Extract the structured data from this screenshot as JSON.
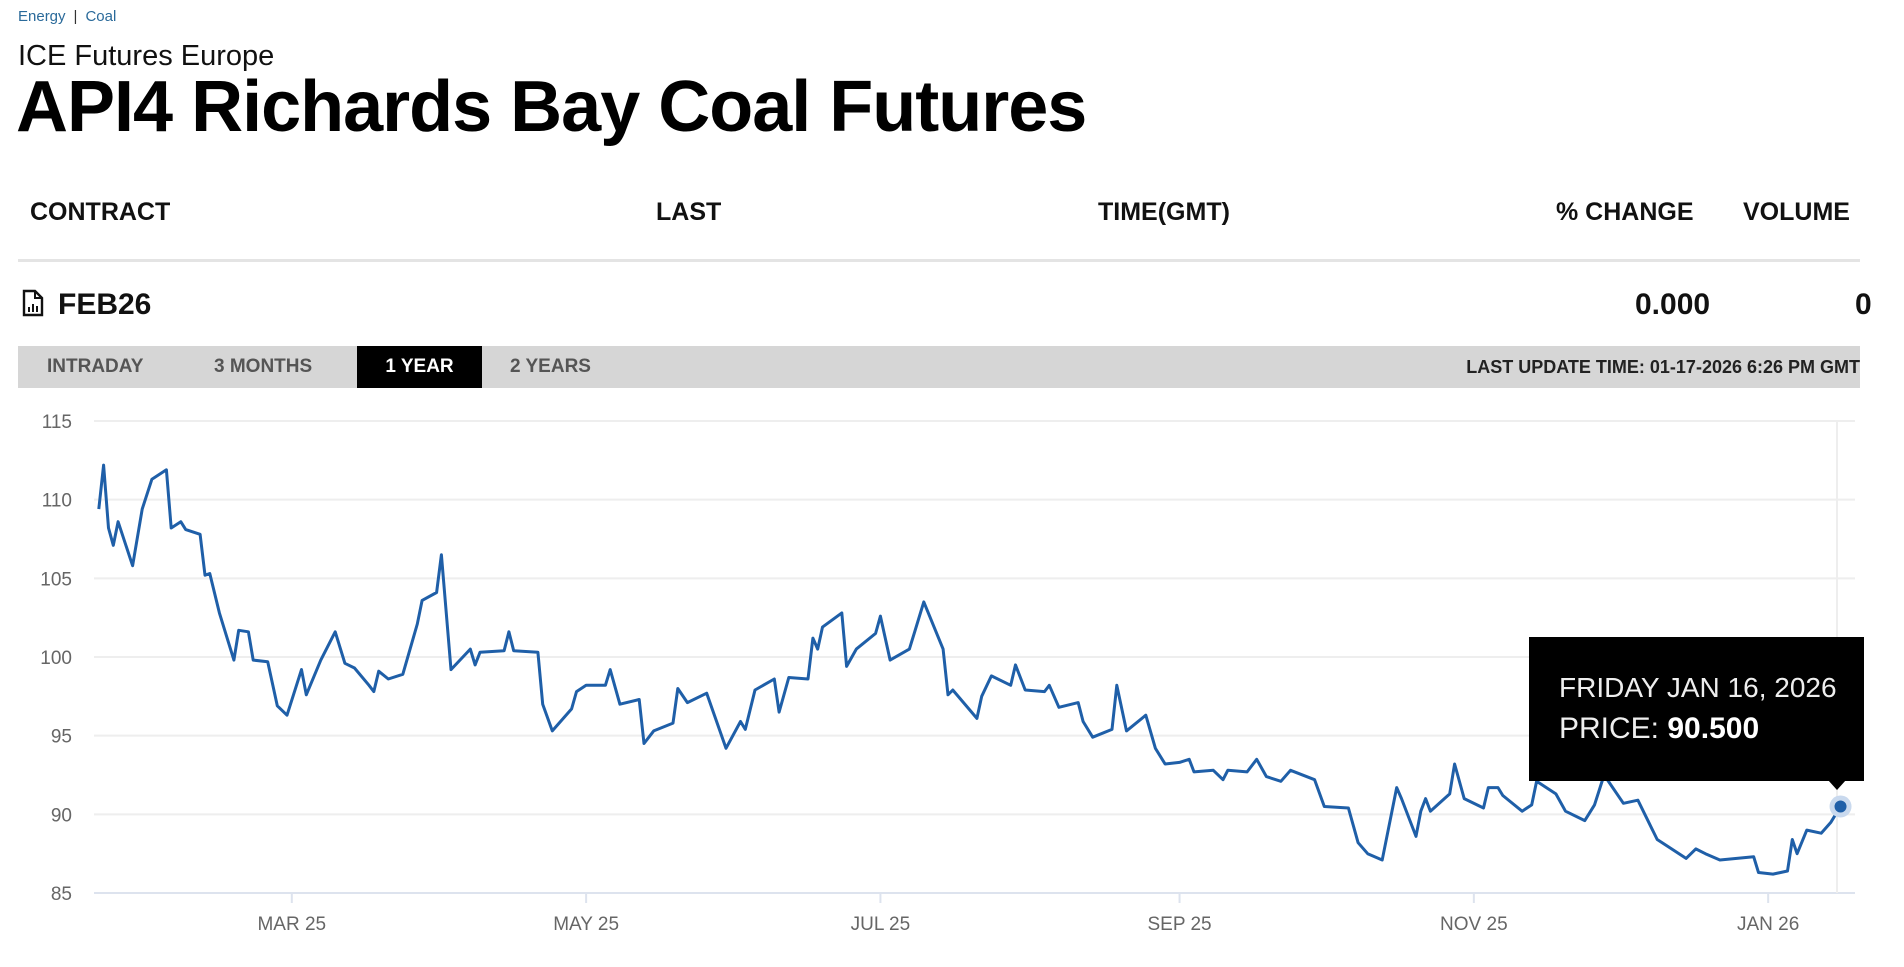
{
  "breadcrumb": [
    "Energy",
    "Coal"
  ],
  "exchange": "ICE Futures Europe",
  "title": "API4 Richards Bay Coal Futures",
  "table": {
    "headers": [
      "CONTRACT",
      "LAST",
      "TIME(GMT)",
      "% CHANGE",
      "VOLUME"
    ],
    "row": {
      "contract": "FEB26",
      "contract_icon": "chart-document-icon",
      "last": "",
      "time": "",
      "change": "0.000",
      "volume": "0"
    }
  },
  "tabs": [
    {
      "label": "INTRADAY",
      "active": false
    },
    {
      "label": "3 MONTHS",
      "active": false
    },
    {
      "label": "1 YEAR",
      "active": true
    },
    {
      "label": "2 YEARS",
      "active": false
    }
  ],
  "last_update": "LAST UPDATE TIME: 01-17-2026 6:26 PM GMT",
  "tooltip": {
    "date": "FRIDAY JAN 16, 2026",
    "price_label": "PRICE:",
    "price": "90.500"
  },
  "colors": {
    "line": "#1f5fa8",
    "tab_bar": "#d6d6d6",
    "active_tab": "#000000",
    "breadcrumb": "#2a6a9a"
  },
  "chart_data": {
    "type": "line",
    "title": "",
    "xlabel": "",
    "ylabel": "",
    "ylim": [
      85,
      115
    ],
    "xlim": [
      "2025-01-19",
      "2026-01-19"
    ],
    "yticks": [
      85,
      90,
      95,
      100,
      105,
      110,
      115
    ],
    "xticks": [
      {
        "date": "2025-03-01",
        "label": "MAR 25"
      },
      {
        "date": "2025-05-01",
        "label": "MAY 25"
      },
      {
        "date": "2025-07-01",
        "label": "JUL 25"
      },
      {
        "date": "2025-09-01",
        "label": "SEP 25"
      },
      {
        "date": "2025-11-01",
        "label": "NOV 25"
      },
      {
        "date": "2026-01-01",
        "label": "JAN 26"
      }
    ],
    "grid": true,
    "highlight": {
      "date": "2026-01-16",
      "value": 90.5
    },
    "series": [
      {
        "points": [
          [
            "2025-01-20",
            109.4
          ],
          [
            "2025-01-21",
            112.2
          ],
          [
            "2025-01-22",
            108.2
          ],
          [
            "2025-01-23",
            107.1
          ],
          [
            "2025-01-24",
            108.6
          ],
          [
            "2025-01-27",
            105.8
          ],
          [
            "2025-01-29",
            109.4
          ],
          [
            "2025-01-31",
            111.3
          ],
          [
            "2025-02-03",
            111.9
          ],
          [
            "2025-02-04",
            108.2
          ],
          [
            "2025-02-06",
            108.6
          ],
          [
            "2025-02-07",
            108.1
          ],
          [
            "2025-02-10",
            107.8
          ],
          [
            "2025-02-11",
            105.2
          ],
          [
            "2025-02-12",
            105.3
          ],
          [
            "2025-02-14",
            102.8
          ],
          [
            "2025-02-17",
            99.8
          ],
          [
            "2025-02-18",
            101.7
          ],
          [
            "2025-02-20",
            101.6
          ],
          [
            "2025-02-21",
            99.8
          ],
          [
            "2025-02-24",
            99.7
          ],
          [
            "2025-02-26",
            96.9
          ],
          [
            "2025-02-28",
            96.3
          ],
          [
            "2025-03-03",
            99.2
          ],
          [
            "2025-03-04",
            97.6
          ],
          [
            "2025-03-07",
            99.8
          ],
          [
            "2025-03-10",
            101.6
          ],
          [
            "2025-03-12",
            99.6
          ],
          [
            "2025-03-14",
            99.3
          ],
          [
            "2025-03-17",
            98.2
          ],
          [
            "2025-03-18",
            97.8
          ],
          [
            "2025-03-19",
            99.1
          ],
          [
            "2025-03-21",
            98.6
          ],
          [
            "2025-03-24",
            98.9
          ],
          [
            "2025-03-27",
            102.1
          ],
          [
            "2025-03-28",
            103.6
          ],
          [
            "2025-03-31",
            104.1
          ],
          [
            "2025-04-01",
            106.5
          ],
          [
            "2025-04-03",
            99.2
          ],
          [
            "2025-04-07",
            100.5
          ],
          [
            "2025-04-08",
            99.5
          ],
          [
            "2025-04-09",
            100.3
          ],
          [
            "2025-04-14",
            100.4
          ],
          [
            "2025-04-15",
            101.6
          ],
          [
            "2025-04-16",
            100.4
          ],
          [
            "2025-04-21",
            100.3
          ],
          [
            "2025-04-22",
            97.0
          ],
          [
            "2025-04-24",
            95.3
          ],
          [
            "2025-04-28",
            96.7
          ],
          [
            "2025-04-29",
            97.8
          ],
          [
            "2025-05-01",
            98.2
          ],
          [
            "2025-05-05",
            98.2
          ],
          [
            "2025-05-06",
            99.2
          ],
          [
            "2025-05-08",
            97.0
          ],
          [
            "2025-05-12",
            97.3
          ],
          [
            "2025-05-13",
            94.5
          ],
          [
            "2025-05-15",
            95.3
          ],
          [
            "2025-05-19",
            95.8
          ],
          [
            "2025-05-20",
            98.0
          ],
          [
            "2025-05-22",
            97.1
          ],
          [
            "2025-05-26",
            97.7
          ],
          [
            "2025-05-27",
            96.8
          ],
          [
            "2025-05-30",
            94.2
          ],
          [
            "2025-06-02",
            95.9
          ],
          [
            "2025-06-03",
            95.4
          ],
          [
            "2025-06-05",
            97.9
          ],
          [
            "2025-06-09",
            98.6
          ],
          [
            "2025-06-10",
            96.5
          ],
          [
            "2025-06-12",
            98.7
          ],
          [
            "2025-06-16",
            98.6
          ],
          [
            "2025-06-17",
            101.2
          ],
          [
            "2025-06-18",
            100.5
          ],
          [
            "2025-06-19",
            101.9
          ],
          [
            "2025-06-23",
            102.8
          ],
          [
            "2025-06-24",
            99.4
          ],
          [
            "2025-06-26",
            100.5
          ],
          [
            "2025-06-30",
            101.5
          ],
          [
            "2025-07-01",
            102.6
          ],
          [
            "2025-07-03",
            99.8
          ],
          [
            "2025-07-07",
            100.5
          ],
          [
            "2025-07-08",
            101.5
          ],
          [
            "2025-07-10",
            103.5
          ],
          [
            "2025-07-14",
            100.5
          ],
          [
            "2025-07-15",
            97.6
          ],
          [
            "2025-07-16",
            97.9
          ],
          [
            "2025-07-21",
            96.1
          ],
          [
            "2025-07-22",
            97.5
          ],
          [
            "2025-07-24",
            98.8
          ],
          [
            "2025-07-28",
            98.2
          ],
          [
            "2025-07-29",
            99.5
          ],
          [
            "2025-07-31",
            97.9
          ],
          [
            "2025-08-04",
            97.8
          ],
          [
            "2025-08-05",
            98.2
          ],
          [
            "2025-08-07",
            96.8
          ],
          [
            "2025-08-11",
            97.1
          ],
          [
            "2025-08-12",
            95.9
          ],
          [
            "2025-08-14",
            94.9
          ],
          [
            "2025-08-18",
            95.4
          ],
          [
            "2025-08-19",
            98.2
          ],
          [
            "2025-08-21",
            95.3
          ],
          [
            "2025-08-25",
            96.3
          ],
          [
            "2025-08-27",
            94.2
          ],
          [
            "2025-08-29",
            93.2
          ],
          [
            "2025-09-01",
            93.3
          ],
          [
            "2025-09-03",
            93.5
          ],
          [
            "2025-09-04",
            92.7
          ],
          [
            "2025-09-08",
            92.8
          ],
          [
            "2025-09-10",
            92.2
          ],
          [
            "2025-09-11",
            92.8
          ],
          [
            "2025-09-15",
            92.7
          ],
          [
            "2025-09-17",
            93.5
          ],
          [
            "2025-09-19",
            92.4
          ],
          [
            "2025-09-22",
            92.1
          ],
          [
            "2025-09-24",
            92.8
          ],
          [
            "2025-09-29",
            92.2
          ],
          [
            "2025-10-01",
            90.5
          ],
          [
            "2025-10-06",
            90.4
          ],
          [
            "2025-10-08",
            88.2
          ],
          [
            "2025-10-10",
            87.5
          ],
          [
            "2025-10-13",
            87.1
          ],
          [
            "2025-10-16",
            91.7
          ],
          [
            "2025-10-17",
            91.0
          ],
          [
            "2025-10-20",
            88.6
          ],
          [
            "2025-10-21",
            90.2
          ],
          [
            "2025-10-22",
            91.0
          ],
          [
            "2025-10-23",
            90.2
          ],
          [
            "2025-10-27",
            91.3
          ],
          [
            "2025-10-28",
            93.2
          ],
          [
            "2025-10-30",
            91.0
          ],
          [
            "2025-11-03",
            90.4
          ],
          [
            "2025-11-04",
            91.7
          ],
          [
            "2025-11-06",
            91.7
          ],
          [
            "2025-11-07",
            91.2
          ],
          [
            "2025-11-11",
            90.2
          ],
          [
            "2025-11-13",
            90.6
          ],
          [
            "2025-11-14",
            92.1
          ],
          [
            "2025-11-18",
            91.3
          ],
          [
            "2025-11-20",
            90.2
          ],
          [
            "2025-11-24",
            89.6
          ],
          [
            "2025-11-26",
            90.6
          ],
          [
            "2025-11-28",
            92.5
          ],
          [
            "2025-12-02",
            90.7
          ],
          [
            "2025-12-05",
            90.9
          ],
          [
            "2025-12-09",
            88.4
          ],
          [
            "2025-12-11",
            88.0
          ],
          [
            "2025-12-15",
            87.2
          ],
          [
            "2025-12-17",
            87.8
          ],
          [
            "2025-12-19",
            87.5
          ],
          [
            "2025-12-22",
            87.1
          ],
          [
            "2025-12-29",
            87.3
          ],
          [
            "2025-12-30",
            86.3
          ],
          [
            "2026-01-02",
            86.2
          ],
          [
            "2026-01-05",
            86.4
          ],
          [
            "2026-01-06",
            88.4
          ],
          [
            "2026-01-07",
            87.5
          ],
          [
            "2026-01-09",
            89.0
          ],
          [
            "2026-01-12",
            88.8
          ],
          [
            "2026-01-14",
            89.5
          ],
          [
            "2026-01-16",
            90.5
          ]
        ]
      }
    ]
  }
}
